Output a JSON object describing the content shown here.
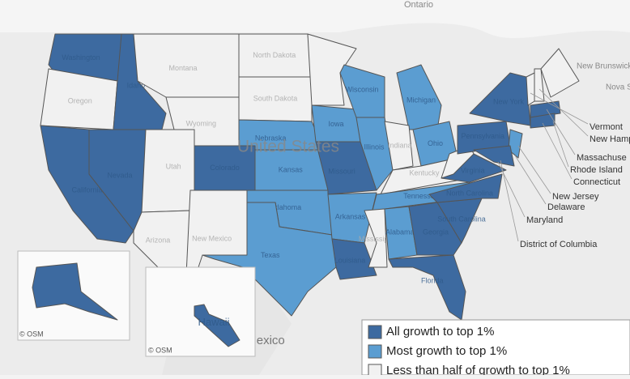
{
  "map": {
    "country_label": "United States",
    "place_labels": [
      "Ontario",
      "Mexico",
      "New Brunswick",
      "Nova Scotia"
    ],
    "attribution": "© OSM",
    "states": [
      {
        "label": "Washington",
        "category": 0
      },
      {
        "label": "Oregon",
        "category": 2
      },
      {
        "label": "California",
        "category": 0
      },
      {
        "label": "Nevada",
        "category": 0
      },
      {
        "label": "Idaho",
        "category": 0
      },
      {
        "label": "Montana",
        "category": 2
      },
      {
        "label": "Wyoming",
        "category": 2
      },
      {
        "label": "Utah",
        "category": 2
      },
      {
        "label": "Colorado",
        "category": 0
      },
      {
        "label": "Arizona",
        "category": 2
      },
      {
        "label": "New Mexico",
        "category": 2
      },
      {
        "label": "North Dakota",
        "category": 2
      },
      {
        "label": "South Dakota",
        "category": 2
      },
      {
        "label": "Nebraska",
        "category": 1
      },
      {
        "label": "Kansas",
        "category": 1
      },
      {
        "label": "Oklahoma",
        "category": 1
      },
      {
        "label": "Texas",
        "category": 1
      },
      {
        "label": null,
        "category": 2
      },
      {
        "label": "Iowa",
        "category": 1
      },
      {
        "label": "Missouri",
        "category": 0
      },
      {
        "label": "Arkansas",
        "category": 1
      },
      {
        "label": "Louisiana",
        "category": 0
      },
      {
        "label": "Wisconsin",
        "category": 1
      },
      {
        "label": "Illinois",
        "category": 1
      },
      {
        "label": "Michigan",
        "category": 1
      },
      {
        "label": "Indiana",
        "category": 2
      },
      {
        "label": "Ohio",
        "category": 1
      },
      {
        "label": "Kentucky",
        "category": 2
      },
      {
        "label": "Tennessee",
        "category": 1
      },
      {
        "label": "Mississippi",
        "category": 2
      },
      {
        "label": "Alabama",
        "category": 1
      },
      {
        "label": "Georgia",
        "category": 0
      },
      {
        "label": "Florida",
        "category": 0
      },
      {
        "label": "South Carolina",
        "category": 0
      },
      {
        "label": "North Carolina",
        "category": 0
      },
      {
        "label": "Virginia",
        "category": 0
      },
      {
        "label": null,
        "category": 2
      },
      {
        "label": "Pennsylvania",
        "category": 0
      },
      {
        "label": "New York",
        "category": 0
      },
      {
        "label": null,
        "category": 1
      },
      {
        "label": null,
        "category": 0
      },
      {
        "label": null,
        "category": 2
      },
      {
        "label": null,
        "category": 2
      },
      {
        "label": null,
        "category": 2
      },
      {
        "label": null,
        "category": 0
      },
      {
        "label": null,
        "category": 0
      },
      {
        "label": null,
        "category": 0
      },
      {
        "label": "Hawaii",
        "category": 0
      }
    ],
    "annotations": [
      "Vermont",
      "New Hamps",
      "Massachuse",
      "Rhode Island",
      "Connecticut",
      "New Jersey",
      "Delaware",
      "Maryland",
      "District of Columbia"
    ]
  },
  "legend": [
    {
      "name": "All growth to top 1%",
      "color": "#3d6aa0"
    },
    {
      "name": "Most growth to top 1%",
      "color": "#5b9dd1"
    },
    {
      "name": "Less than half of growth to top 1%",
      "color": "#f1f1f1"
    }
  ]
}
